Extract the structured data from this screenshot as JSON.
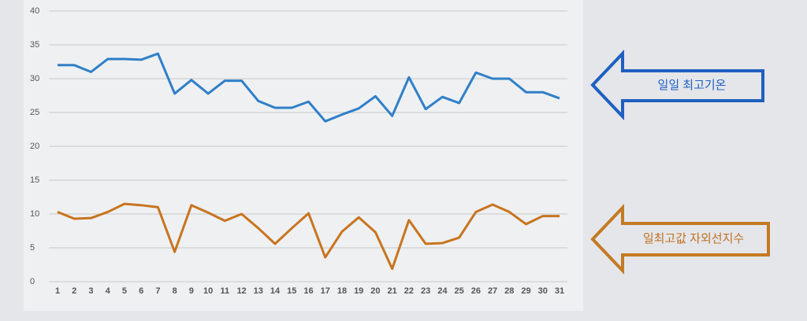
{
  "chart_data": {
    "type": "line",
    "categories": [
      "1",
      "2",
      "3",
      "4",
      "5",
      "6",
      "7",
      "8",
      "9",
      "10",
      "11",
      "12",
      "13",
      "14",
      "15",
      "16",
      "17",
      "18",
      "19",
      "20",
      "21",
      "22",
      "23",
      "24",
      "25",
      "26",
      "27",
      "28",
      "29",
      "30",
      "31"
    ],
    "series": [
      {
        "name": "일일 최고기온",
        "color": "#2f7fc8",
        "values": [
          32.0,
          32.0,
          31.0,
          32.9,
          32.9,
          32.8,
          33.7,
          27.8,
          29.8,
          27.8,
          29.7,
          29.7,
          26.7,
          25.7,
          25.7,
          26.6,
          23.7,
          24.7,
          25.6,
          27.4,
          24.5,
          30.2,
          25.5,
          27.3,
          26.4,
          30.9,
          30.0,
          30.0,
          28.0,
          28.0,
          27.1
        ]
      },
      {
        "name": "일최고값 자외선지수",
        "color": "#c8741e",
        "values": [
          10.3,
          9.3,
          9.4,
          10.3,
          11.5,
          11.3,
          11.0,
          4.4,
          11.3,
          10.2,
          9.0,
          10.0,
          7.9,
          5.6,
          7.9,
          10.1,
          3.6,
          7.4,
          9.5,
          7.3,
          1.9,
          9.1,
          5.6,
          5.7,
          6.5,
          10.3,
          11.4,
          10.3,
          8.5,
          9.7,
          9.7
        ]
      }
    ],
    "ylim": [
      0,
      40
    ],
    "yticks": [
      0,
      5,
      10,
      15,
      20,
      25,
      30,
      35,
      40
    ],
    "grid": true
  }
}
